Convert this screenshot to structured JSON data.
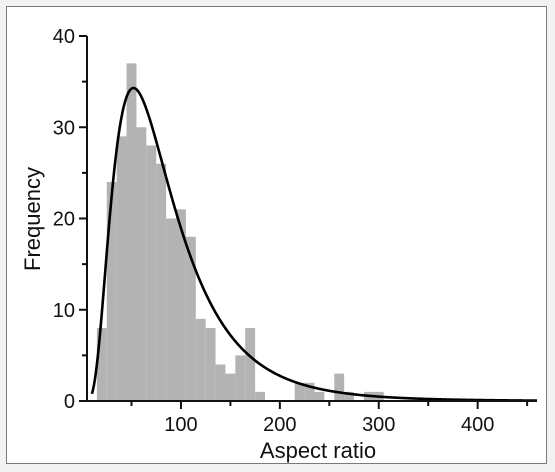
{
  "chart_data": {
    "type": "bar",
    "xlabel": "Aspect ratio",
    "ylabel": "Frequency",
    "xlim": [
      5,
      460
    ],
    "ylim": [
      0,
      40
    ],
    "x_ticks": [
      100,
      200,
      300,
      400
    ],
    "y_ticks": [
      0,
      10,
      20,
      30,
      40
    ],
    "bin_width": 10,
    "bars": [
      {
        "x": 20,
        "y": 8
      },
      {
        "x": 30,
        "y": 24
      },
      {
        "x": 40,
        "y": 29
      },
      {
        "x": 50,
        "y": 37
      },
      {
        "x": 60,
        "y": 30
      },
      {
        "x": 70,
        "y": 28
      },
      {
        "x": 80,
        "y": 26
      },
      {
        "x": 90,
        "y": 20
      },
      {
        "x": 100,
        "y": 21
      },
      {
        "x": 110,
        "y": 18
      },
      {
        "x": 120,
        "y": 9
      },
      {
        "x": 130,
        "y": 8
      },
      {
        "x": 140,
        "y": 4
      },
      {
        "x": 150,
        "y": 3
      },
      {
        "x": 160,
        "y": 5
      },
      {
        "x": 170,
        "y": 8
      },
      {
        "x": 180,
        "y": 1
      },
      {
        "x": 190,
        "y": 0
      },
      {
        "x": 200,
        "y": 0
      },
      {
        "x": 210,
        "y": 0
      },
      {
        "x": 220,
        "y": 2
      },
      {
        "x": 230,
        "y": 2
      },
      {
        "x": 240,
        "y": 1
      },
      {
        "x": 250,
        "y": 0
      },
      {
        "x": 260,
        "y": 3
      },
      {
        "x": 270,
        "y": 1
      },
      {
        "x": 280,
        "y": 0
      },
      {
        "x": 290,
        "y": 1
      },
      {
        "x": 300,
        "y": 1
      }
    ],
    "fit_curve": {
      "type": "lognormal",
      "mode_x": 52,
      "peak_y": 34.3
    },
    "colors": {
      "bars": "#b3b3b3",
      "curve": "#000000",
      "axes": "#111111"
    },
    "grid": false
  }
}
